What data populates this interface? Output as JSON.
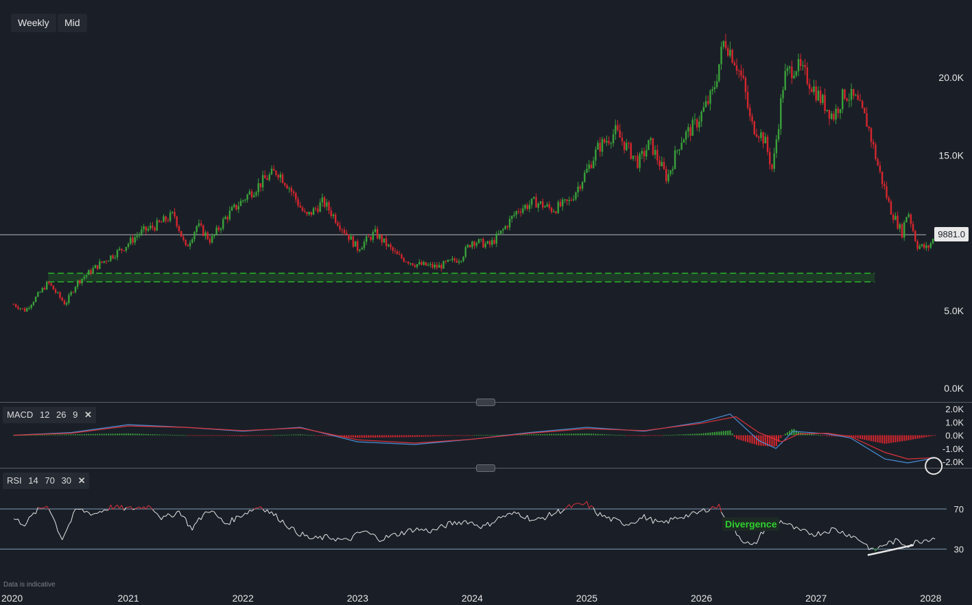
{
  "toolbar": {
    "timeframe_label": "Weekly",
    "price_type_label": "Mid"
  },
  "price_tag": "9881.0",
  "footnote": "Data is indicative",
  "annotation": {
    "divergence": "Divergence"
  },
  "macd": {
    "name": "MACD",
    "fast": "12",
    "slow": "26",
    "signal": "9",
    "close": "✕"
  },
  "rsi": {
    "name": "RSI",
    "period": "14",
    "upper": "70",
    "lower": "30",
    "close": "✕"
  },
  "colors": {
    "background": "#1a1f27",
    "up": "#3aa23a",
    "down": "#d8262e",
    "macd_line": "#4a90d9",
    "signal_line": "#e0323a",
    "rsi_line": "#e8e8e8",
    "support_zone": "#2bb52b"
  },
  "chart_data": [
    {
      "type": "candlestick",
      "title": "",
      "x_axis": {
        "ticks": [
          "2020",
          "2021",
          "2022",
          "2023",
          "2024",
          "2025",
          "2026",
          "2027",
          "2028"
        ],
        "range": [
          2020,
          2028
        ]
      },
      "y_axis": {
        "ticks": [
          "0.0K",
          "5.0K",
          "15.0K",
          "20.0K"
        ],
        "tick_values": [
          0,
          5000,
          15000,
          20000
        ],
        "range": [
          0,
          24000
        ]
      },
      "last_price": 9881.0,
      "support_zone": [
        6850,
        7400
      ],
      "path": [
        [
          2020.0,
          5400
        ],
        [
          2020.1,
          5000
        ],
        [
          2020.2,
          5900
        ],
        [
          2020.3,
          6800
        ],
        [
          2020.45,
          5400
        ],
        [
          2020.55,
          6800
        ],
        [
          2020.75,
          8000
        ],
        [
          2020.95,
          9000
        ],
        [
          2021.1,
          10000
        ],
        [
          2021.25,
          10500
        ],
        [
          2021.4,
          11200
        ],
        [
          2021.5,
          9000
        ],
        [
          2021.6,
          10500
        ],
        [
          2021.72,
          9500
        ],
        [
          2021.85,
          11000
        ],
        [
          2022.05,
          12500
        ],
        [
          2022.2,
          13500
        ],
        [
          2022.3,
          14000
        ],
        [
          2022.4,
          13000
        ],
        [
          2022.55,
          11000
        ],
        [
          2022.7,
          12000
        ],
        [
          2022.85,
          10500
        ],
        [
          2023.0,
          9000
        ],
        [
          2023.15,
          10000
        ],
        [
          2023.35,
          8500
        ],
        [
          2023.5,
          8000
        ],
        [
          2023.7,
          7800
        ],
        [
          2023.9,
          8400
        ],
        [
          2024.0,
          9500
        ],
        [
          2024.15,
          9200
        ],
        [
          2024.25,
          10000
        ],
        [
          2024.4,
          11500
        ],
        [
          2024.55,
          12000
        ],
        [
          2024.7,
          11500
        ],
        [
          2024.85,
          12000
        ],
        [
          2025.0,
          14000
        ],
        [
          2025.1,
          15500
        ],
        [
          2025.25,
          16500
        ],
        [
          2025.35,
          15500
        ],
        [
          2025.45,
          14500
        ],
        [
          2025.55,
          15800
        ],
        [
          2025.7,
          13500
        ],
        [
          2025.82,
          16000
        ],
        [
          2025.95,
          17000
        ],
        [
          2026.1,
          19000
        ],
        [
          2026.2,
          22500
        ],
        [
          2026.3,
          21000
        ],
        [
          2026.37,
          19500
        ],
        [
          2026.43,
          17000
        ],
        [
          2026.5,
          16500
        ],
        [
          2026.55,
          16000
        ],
        [
          2026.62,
          14000
        ],
        [
          2026.72,
          20000
        ],
        [
          2026.82,
          20800
        ],
        [
          2026.92,
          20000
        ],
        [
          2027.05,
          18500
        ],
        [
          2027.15,
          17500
        ],
        [
          2027.25,
          19000
        ],
        [
          2027.35,
          18500
        ],
        [
          2027.45,
          17000
        ],
        [
          2027.55,
          14000
        ],
        [
          2027.65,
          11500
        ],
        [
          2027.75,
          10000
        ],
        [
          2027.8,
          11500
        ],
        [
          2027.88,
          9200
        ],
        [
          2027.97,
          9000
        ],
        [
          2028.05,
          9900
        ]
      ],
      "price_note": "path values are approximate weekly closes (year, price) read from the chart"
    },
    {
      "type": "line",
      "name": "MACD",
      "y_axis": {
        "ticks": [
          "2.0K",
          "1.0K",
          "0.0K",
          "-1.0K",
          "-2.0K"
        ],
        "tick_values": [
          2000,
          1000,
          0,
          -1000,
          -2000
        ]
      },
      "series": [
        {
          "name": "MACD",
          "values": [
            [
              2020,
              0
            ],
            [
              2020.5,
              200
            ],
            [
              2021,
              800
            ],
            [
              2021.5,
              600
            ],
            [
              2022,
              300
            ],
            [
              2022.5,
              600
            ],
            [
              2023,
              -500
            ],
            [
              2023.5,
              -700
            ],
            [
              2024,
              -300
            ],
            [
              2024.5,
              200
            ],
            [
              2025,
              600
            ],
            [
              2025.5,
              300
            ],
            [
              2026,
              1000
            ],
            [
              2026.25,
              1600
            ],
            [
              2026.5,
              -400
            ],
            [
              2026.65,
              -1000
            ],
            [
              2026.8,
              300
            ],
            [
              2027.1,
              100
            ],
            [
              2027.3,
              -200
            ],
            [
              2027.6,
              -1800
            ],
            [
              2027.8,
              -2100
            ],
            [
              2028.05,
              -1700
            ]
          ]
        },
        {
          "name": "Signal",
          "values": [
            [
              2020,
              0
            ],
            [
              2020.5,
              150
            ],
            [
              2021,
              700
            ],
            [
              2021.5,
              600
            ],
            [
              2022,
              350
            ],
            [
              2022.5,
              550
            ],
            [
              2023,
              -350
            ],
            [
              2023.5,
              -600
            ],
            [
              2024,
              -300
            ],
            [
              2024.5,
              150
            ],
            [
              2025,
              500
            ],
            [
              2025.5,
              350
            ],
            [
              2026,
              900
            ],
            [
              2026.3,
              1400
            ],
            [
              2026.5,
              200
            ],
            [
              2026.7,
              -500
            ],
            [
              2026.85,
              100
            ],
            [
              2027.1,
              150
            ],
            [
              2027.3,
              -100
            ],
            [
              2027.6,
              -1300
            ],
            [
              2027.8,
              -1800
            ],
            [
              2028.05,
              -1700
            ]
          ]
        }
      ]
    },
    {
      "type": "line",
      "name": "RSI",
      "y_axis": {
        "ticks": [
          "70",
          "30"
        ],
        "tick_values": [
          70,
          30
        ],
        "range": [
          0,
          100
        ]
      },
      "series": [
        {
          "name": "RSI",
          "values": [
            [
              2020,
              60
            ],
            [
              2020.1,
              55
            ],
            [
              2020.2,
              68
            ],
            [
              2020.3,
              74
            ],
            [
              2020.42,
              40
            ],
            [
              2020.55,
              70
            ],
            [
              2020.7,
              65
            ],
            [
              2020.85,
              72
            ],
            [
              2021.0,
              70
            ],
            [
              2021.2,
              73
            ],
            [
              2021.3,
              60
            ],
            [
              2021.45,
              68
            ],
            [
              2021.55,
              50
            ],
            [
              2021.7,
              70
            ],
            [
              2021.85,
              55
            ],
            [
              2022.0,
              65
            ],
            [
              2022.15,
              73
            ],
            [
              2022.3,
              62
            ],
            [
              2022.45,
              48
            ],
            [
              2022.6,
              40
            ],
            [
              2022.75,
              42
            ],
            [
              2022.9,
              38
            ],
            [
              2023.05,
              48
            ],
            [
              2023.2,
              40
            ],
            [
              2023.35,
              45
            ],
            [
              2023.5,
              50
            ],
            [
              2023.65,
              48
            ],
            [
              2023.8,
              55
            ],
            [
              2023.95,
              58
            ],
            [
              2024.1,
              52
            ],
            [
              2024.25,
              62
            ],
            [
              2024.4,
              66
            ],
            [
              2024.55,
              58
            ],
            [
              2024.7,
              65
            ],
            [
              2024.85,
              72
            ],
            [
              2025.0,
              75
            ],
            [
              2025.1,
              65
            ],
            [
              2025.2,
              60
            ],
            [
              2025.35,
              55
            ],
            [
              2025.5,
              62
            ],
            [
              2025.65,
              55
            ],
            [
              2025.8,
              62
            ],
            [
              2025.95,
              65
            ],
            [
              2026.05,
              70
            ],
            [
              2026.15,
              73
            ],
            [
              2026.25,
              55
            ],
            [
              2026.35,
              40
            ],
            [
              2026.45,
              32
            ],
            [
              2026.55,
              50
            ],
            [
              2026.7,
              58
            ],
            [
              2026.85,
              48
            ],
            [
              2027.0,
              45
            ],
            [
              2027.15,
              50
            ],
            [
              2027.3,
              44
            ],
            [
              2027.4,
              38
            ],
            [
              2027.5,
              28
            ],
            [
              2027.6,
              35
            ],
            [
              2027.7,
              38
            ],
            [
              2027.8,
              34
            ],
            [
              2027.9,
              38
            ],
            [
              2028.05,
              42
            ]
          ]
        }
      ],
      "trendline": [
        [
          2027.45,
          24
        ],
        [
          2027.85,
          34
        ]
      ]
    }
  ]
}
